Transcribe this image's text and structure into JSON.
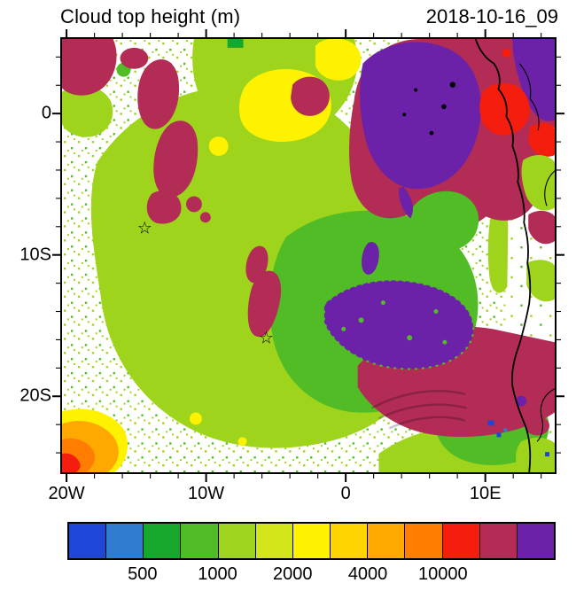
{
  "header": {
    "title": "Cloud top height (m)",
    "timestamp": "2018-10-16_09"
  },
  "axes": {
    "x_ticks": [
      "20W",
      "10W",
      "0",
      "10E"
    ],
    "y_ticks": [
      "0",
      "10S",
      "20S"
    ]
  },
  "colorbar": {
    "colors": [
      "#1f46d8",
      "#2f7bd0",
      "#16a72c",
      "#51bc25",
      "#9ed41c",
      "#d3e61a",
      "#fff200",
      "#ffd400",
      "#ffa800",
      "#ff7d00",
      "#f51d0d",
      "#b22c56",
      "#6b21a8"
    ],
    "labels": [
      {
        "text": "500",
        "boundary": 2
      },
      {
        "text": "1000",
        "boundary": 4
      },
      {
        "text": "2000",
        "boundary": 6
      },
      {
        "text": "4000",
        "boundary": 8
      },
      {
        "text": "10000",
        "boundary": 10
      }
    ]
  },
  "markers": [
    {
      "symbol": "☆",
      "lon": -14.4,
      "lat": -8.2
    },
    {
      "symbol": "☆",
      "lon": -5.7,
      "lat": -16.0
    }
  ],
  "chart_data": {
    "type": "heatmap",
    "title": "Cloud top height (m)",
    "datetime": "2018-10-16_09",
    "units": "m",
    "projection": "lat-lon map, SE Atlantic / SW Africa",
    "lon_range": [
      -20.5,
      15.1
    ],
    "lat_range": [
      -25.5,
      5.4
    ],
    "x_tick_values": [
      -20,
      -10,
      0,
      10
    ],
    "y_tick_values": [
      0,
      -10,
      -20
    ],
    "colorbar_cells": 13,
    "labeled_boundaries": {
      "2": 500,
      "4": 1000,
      "6": 2000,
      "8": 4000,
      "10": 10000
    },
    "regions": [
      {
        "value_band": "1000-2000 m (yellow-green)",
        "extent": "broad low-cloud deck over most of the ocean from 20W to ~2E, 2S-22S"
      },
      {
        "value_band": "500-1000 m (green)",
        "extent": "lower cloud tops 8S-20S between 6W and 8E, with a tongue extending SE to the coast near 22S"
      },
      {
        "value_band": "~2000 m (yellow)",
        "extent": "patches near 6W-2W around 1N-3S plus scattered specks"
      },
      {
        "value_band": "4000-10000 m (maroon)",
        "extent": "NE quadrant 3W-14E north of 6S; elongated streaks near 6W 9S-13S; large region 13S-19S from 2W to the coast; patches in the NW corner"
      },
      {
        "value_band": ">10000 m (purple)",
        "extent": "deep convection ~2E-9E 4N-4S over the Congo basin; mottled area 1E-8E 12S-15S; NE corner over land"
      },
      {
        "value_band": ">10000 m (red)",
        "extent": "cells near the coast around 9E-14E 1S-4S"
      },
      {
        "value_band": "4000-10000 m (orange/red)",
        "extent": "small patch at the SW corner ~20W 24S-25S"
      },
      {
        "value_band": "<500 m (blue)",
        "extent": "isolated specks near 11E 21S and along the right edge"
      },
      {
        "value_band": "clear / broken low cloud (white with green speckle)",
        "extent": "western and southern ocean areas"
      }
    ],
    "overlays": [
      "African coastline",
      "country borders",
      "two star markers",
      "island dots near 7E-8E 0-2S"
    ]
  }
}
